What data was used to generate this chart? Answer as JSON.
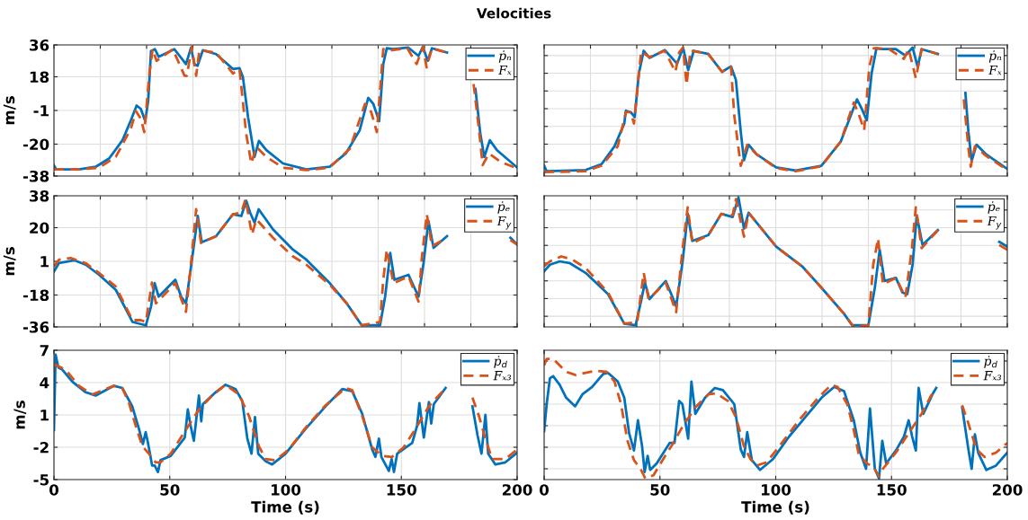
{
  "chart_data": [
    {
      "type": "line",
      "title": "Velocities",
      "ylabel": "m/s",
      "xlim": [
        0,
        200
      ],
      "ylim": [
        -38,
        36
      ],
      "xticks": [
        {
          "value": 0,
          "label": null
        },
        {
          "value": 20,
          "label": null
        },
        {
          "value": 40,
          "label": null
        },
        {
          "value": 60,
          "label": null
        },
        {
          "value": 80,
          "label": null
        },
        {
          "value": 100,
          "label": null
        },
        {
          "value": 120,
          "label": null
        },
        {
          "value": 140,
          "label": null
        },
        {
          "value": 160,
          "label": null
        },
        {
          "value": 180,
          "label": null
        },
        {
          "value": 200,
          "label": null
        }
      ],
      "yticks": [
        -38,
        -20,
        -1,
        18,
        36
      ],
      "tick_labels": "y",
      "grid": true,
      "legend": "top right",
      "series": [
        {
          "name": "ṗₙ",
          "color": "#0072bd",
          "line_style": "solid",
          "x": [
            0,
            1,
            10.8,
            18,
            23.8,
            29.6,
            33.2,
            35.7,
            37.5,
            39.4,
            40.7,
            41.9,
            43.6,
            45.2,
            52,
            57,
            59.2,
            60.6,
            62,
            64.3,
            70,
            77.3,
            80.1,
            81.6,
            83.8,
            86.6,
            88.5,
            91.7,
            98.9,
            109,
            119,
            126,
            132,
            135.7,
            137.9,
            140.4,
            142.2,
            143.7,
            146.6,
            153,
            157.4,
            159.3,
            161.4,
            163.2,
            169.7,
            175,
            182,
            184.1,
            185.8,
            188.2,
            191.3,
            200
          ],
          "values": [
            -32,
            -34.3,
            -34.3,
            -32.8,
            -28.1,
            -17.8,
            -6.6,
            1.8,
            -0.1,
            -7,
            4.6,
            32.6,
            33.6,
            29.3,
            33.6,
            25.2,
            34.5,
            25.2,
            24.2,
            33,
            30.8,
            22.4,
            22.9,
            17.7,
            -4.7,
            -27.2,
            -18.2,
            -23.4,
            -30.9,
            -34.3,
            -32.8,
            -25.3,
            -12.2,
            6.1,
            2.7,
            -7,
            25.2,
            34.1,
            33.6,
            34.5,
            29.8,
            34.9,
            27,
            34.1,
            31.7,
            null,
            11.1,
            -14.1,
            -27.2,
            -17.8,
            -23.4,
            -33.2
          ]
        },
        {
          "name": "Fₓ",
          "color": "#d95319",
          "line_style": "dashed",
          "x": [
            0,
            10.8,
            19.5,
            26.7,
            33.2,
            35.4,
            37.5,
            39,
            41.2,
            42.6,
            44.3,
            51.3,
            56.4,
            57.4,
            59.5,
            61.4,
            62.8,
            70,
            77.3,
            80.1,
            83,
            85.2,
            87.4,
            91.7,
            98.9,
            109,
            119,
            127.8,
            134.3,
            137,
            139.4,
            142.2,
            145.8,
            152.6,
            156.6,
            159.3,
            160.9,
            163.2,
            169.7,
            175,
            181.2,
            183.4,
            185.1,
            187.8,
            192.8,
            200
          ],
          "values": [
            -34.3,
            -34.3,
            -33.3,
            -27.2,
            -11.3,
            -1.4,
            -5.7,
            -13.2,
            19.6,
            33.6,
            27,
            33.6,
            18.6,
            18.6,
            34.9,
            18.6,
            33,
            31.7,
            19.9,
            22.4,
            -14.1,
            -30.9,
            -21.6,
            -27.2,
            -33.3,
            -34.7,
            -33.2,
            -22.5,
            2.7,
            -1.9,
            -13.2,
            33.6,
            33,
            34.1,
            25.2,
            34.9,
            23.3,
            34.1,
            31.7,
            null,
            13.9,
            -10.4,
            -31.9,
            -25.3,
            -30,
            -33.7
          ]
        }
      ]
    },
    {
      "type": "line",
      "xlim": [
        0,
        200
      ],
      "ylim": [
        -38,
        36
      ],
      "xticks": [
        {
          "value": 0,
          "label": null
        },
        {
          "value": 20,
          "label": null
        },
        {
          "value": 40,
          "label": null
        },
        {
          "value": 60,
          "label": null
        },
        {
          "value": 80,
          "label": null
        },
        {
          "value": 100,
          "label": null
        },
        {
          "value": 120,
          "label": null
        },
        {
          "value": 140,
          "label": null
        },
        {
          "value": 160,
          "label": null
        },
        {
          "value": 180,
          "label": null
        },
        {
          "value": 200,
          "label": null
        }
      ],
      "yticks": [
        {
          "value": -30,
          "label": null
        },
        {
          "value": -20,
          "label": null
        },
        {
          "value": -10,
          "label": null
        },
        {
          "value": 0,
          "label": null
        },
        {
          "value": 10,
          "label": null
        },
        {
          "value": 20,
          "label": null
        },
        {
          "value": 30,
          "label": null
        }
      ],
      "tick_labels": false,
      "grid": true,
      "legend": "top right",
      "series": [
        {
          "name": "ṗₙ",
          "color": "#0072bd",
          "line_style": "solid",
          "x": [
            0,
            1.1,
            17.9,
            24.8,
            30.4,
            34.6,
            35.3,
            37.4,
            39.1,
            40.9,
            43,
            45.5,
            52.1,
            57.4,
            60,
            62.2,
            64.6,
            70.9,
            76.8,
            80.7,
            82.8,
            84.9,
            86.3,
            88.3,
            91.8,
            100.2,
            108.6,
            119.7,
            128.1,
            135.1,
            137.2,
            139.3,
            141.4,
            143.5,
            145.6,
            151.9,
            156,
            159.1,
            161.3,
            163,
            170,
            176,
            181.9,
            183.2,
            184.6,
            186.7,
            190.9,
            200
          ],
          "values": [
            -32.2,
            -35.3,
            -34.6,
            -31.3,
            -21.2,
            -8.4,
            -1.1,
            -2,
            -4.8,
            19.9,
            32.7,
            28.7,
            33.1,
            25.4,
            34.5,
            21.7,
            32.7,
            30.9,
            20.8,
            23.9,
            16.3,
            -13,
            -29.1,
            -20.3,
            -25.8,
            -33.1,
            -34.9,
            -32.2,
            -18.5,
            5.3,
            -0.2,
            -6.6,
            19.9,
            34.2,
            33.6,
            33.6,
            30,
            34.5,
            23.6,
            33.6,
            30.9,
            null,
            8.9,
            -13,
            -29.4,
            -20.3,
            -25.8,
            -34
          ]
        },
        {
          "name": "Fₓ",
          "color": "#d95319",
          "line_style": "dashed",
          "x": [
            0,
            17.9,
            24.8,
            31.8,
            35.3,
            37.4,
            38.8,
            40.5,
            41.9,
            45.5,
            52.1,
            56.7,
            58.3,
            60,
            61.5,
            63.2,
            70.9,
            76.8,
            80.7,
            82.1,
            84.9,
            87.7,
            91.8,
            100.2,
            108.6,
            119.7,
            128.1,
            133.7,
            135.8,
            138.2,
            140.4,
            142.4,
            149,
            155.3,
            157.4,
            160.5,
            163,
            170,
            176,
            181.2,
            183.2,
            184.2,
            186,
            190.9,
            200
          ],
          "values": [
            -35.8,
            -35.3,
            -32.2,
            -21.2,
            -2,
            -2,
            -8.4,
            14.4,
            32.3,
            29.1,
            32.7,
            20.8,
            31.8,
            34.5,
            13.5,
            32.7,
            30.9,
            20.8,
            23.6,
            -3.9,
            -32.2,
            -20.3,
            -25.8,
            -33.5,
            -35.3,
            -32.5,
            -18.5,
            3.5,
            -2.9,
            -12.1,
            23.6,
            34.2,
            33.6,
            28.1,
            33.6,
            17.2,
            33.6,
            30.9,
            null,
            5.3,
            -22.1,
            -32.7,
            -21.2,
            -26.7,
            -34.6
          ]
        }
      ]
    },
    {
      "type": "line",
      "ylabel": "m/s",
      "xlim": [
        0,
        200
      ],
      "ylim": [
        -36,
        38
      ],
      "xticks": [
        {
          "value": 0,
          "label": null
        },
        {
          "value": 20,
          "label": null
        },
        {
          "value": 40,
          "label": null
        },
        {
          "value": 60,
          "label": null
        },
        {
          "value": 80,
          "label": null
        },
        {
          "value": 100,
          "label": null
        },
        {
          "value": 120,
          "label": null
        },
        {
          "value": 140,
          "label": null
        },
        {
          "value": 160,
          "label": null
        },
        {
          "value": 180,
          "label": null
        },
        {
          "value": 200,
          "label": null
        }
      ],
      "yticks": [
        -36,
        -18,
        1,
        20,
        38
      ],
      "tick_labels": "y",
      "grid": true,
      "legend": "top right",
      "series": [
        {
          "name": "ṗₑ",
          "color": "#0072bd",
          "line_style": "solid",
          "x": [
            0,
            2.2,
            8.7,
            13.7,
            19.5,
            26.7,
            33.9,
            39.7,
            41.9,
            43.5,
            45.2,
            52.4,
            54.9,
            57,
            59.2,
            62.1,
            63.8,
            70,
            77.3,
            80.9,
            83,
            84.7,
            86.6,
            88.4,
            94.6,
            103.2,
            109,
            119.1,
            126.4,
            132.9,
            140.8,
            143,
            145.2,
            147,
            153.1,
            157.4,
            159.6,
            161.7,
            163.9,
            169.7,
            180,
            197.1,
            200
          ],
          "values": [
            -4.7,
            0.1,
            1.6,
            -0.9,
            -6.6,
            -15.1,
            -33.2,
            -35.1,
            -24.6,
            -11.3,
            -18.9,
            -9.4,
            -18.9,
            -22.7,
            -1.8,
            26.6,
            11.8,
            15.2,
            27.6,
            26.6,
            35.2,
            28.5,
            22.8,
            30.4,
            19,
            7.6,
            1.9,
            -11.3,
            -22.7,
            -35.1,
            -35.1,
            -18.9,
            5.7,
            -9.4,
            -6.6,
            -18.9,
            0.1,
            23.8,
            8.6,
            15.2,
            null,
            14.3,
            10.5
          ]
        },
        {
          "name": "F$_{y}$",
          "color": "#d95319",
          "line_style": "dashed",
          "x": [
            0,
            2.2,
            7.2,
            13.7,
            19.5,
            26.7,
            33.9,
            37.5,
            39.7,
            42.3,
            44,
            52.4,
            57,
            59.2,
            61.4,
            63.5,
            70,
            77.3,
            80.9,
            82.7,
            85.5,
            87.4,
            94.6,
            103.2,
            109,
            119.1,
            126.4,
            132.9,
            140.8,
            142.2,
            143.7,
            146.6,
            153.1,
            157.4,
            158.9,
            161,
            163.2,
            169.7,
            180,
            197.1,
            200
          ],
          "values": [
            -1.8,
            1.9,
            2.9,
            0,
            -5.6,
            -13.2,
            -32.2,
            -32.2,
            -33.2,
            -11,
            -22.7,
            -11.3,
            -27.5,
            0.1,
            30.4,
            11.4,
            15.2,
            27.6,
            28.5,
            36.1,
            16.2,
            24.7,
            14.3,
            3.8,
            -0.9,
            -12.2,
            -22.7,
            -35.1,
            -33.2,
            -9.4,
            7.6,
            -11.3,
            -7.5,
            -21.7,
            3.8,
            27.6,
            9.5,
            14.3,
            null,
            13,
            10.5
          ]
        }
      ]
    },
    {
      "type": "line",
      "xlim": [
        0,
        200
      ],
      "ylim": [
        -36,
        38
      ],
      "xticks": [
        {
          "value": 0,
          "label": null
        },
        {
          "value": 20,
          "label": null
        },
        {
          "value": 40,
          "label": null
        },
        {
          "value": 60,
          "label": null
        },
        {
          "value": 80,
          "label": null
        },
        {
          "value": 100,
          "label": null
        },
        {
          "value": 120,
          "label": null
        },
        {
          "value": 140,
          "label": null
        },
        {
          "value": 160,
          "label": null
        },
        {
          "value": 180,
          "label": null
        },
        {
          "value": 200,
          "label": null
        }
      ],
      "yticks": [
        {
          "value": -30,
          "label": null
        },
        {
          "value": -20,
          "label": null
        },
        {
          "value": -10,
          "label": null
        },
        {
          "value": 0,
          "label": null
        },
        {
          "value": 10,
          "label": null
        },
        {
          "value": 20,
          "label": null
        },
        {
          "value": 30,
          "label": null
        }
      ],
      "tick_labels": false,
      "grid": true,
      "legend": "top right",
      "series": [
        {
          "name": "ṗₑ",
          "color": "#0072bd",
          "line_style": "solid",
          "x": [
            0,
            2.5,
            6.7,
            10.9,
            17.9,
            27.6,
            34.6,
            39.5,
            41.9,
            43.5,
            45.5,
            52.5,
            54.9,
            57,
            59.8,
            62,
            64,
            70.9,
            76.5,
            81.4,
            83.9,
            86.3,
            88.3,
            100.2,
            111.4,
            119.7,
            129.5,
            133,
            140,
            142.8,
            144.9,
            147,
            151.9,
            154.7,
            156.8,
            159.1,
            160.9,
            163.4,
            170,
            180,
            196.5,
            200
          ],
          "values": [
            -4.6,
            -0.9,
            1,
            0.1,
            -5.5,
            -17.5,
            -34.2,
            -35.1,
            -21.2,
            -11,
            -20.3,
            -10.1,
            -17.5,
            -24.5,
            1,
            27.8,
            12.5,
            15.8,
            27.8,
            26,
            37.1,
            19.5,
            28.4,
            9.3,
            -1.8,
            -13.8,
            -28.6,
            -35.1,
            -35.1,
            -13.8,
            7.5,
            -10.1,
            -8.3,
            -16.6,
            -17.5,
            -0.9,
            26.8,
            10.2,
            18.6,
            null,
            12,
            9.3
          ]
        },
        {
          "name": "F$_{y}$",
          "color": "#d95319",
          "line_style": "dashed",
          "x": [
            0,
            2.5,
            7.4,
            12.3,
            17.9,
            27.6,
            34.6,
            40.2,
            43,
            45.1,
            52.5,
            57,
            59.8,
            62,
            64,
            70.9,
            76.5,
            81.4,
            82.8,
            86.3,
            88.3,
            100.2,
            111.4,
            119.7,
            129.5,
            133.7,
            140,
            142.1,
            144.2,
            146.3,
            151.9,
            156,
            158.8,
            160.5,
            163,
            170,
            180,
            196.5,
            200
          ],
          "values": [
            -1.8,
            1,
            3.8,
            1.9,
            -2.7,
            -16.6,
            -34.2,
            -33.2,
            -5.5,
            -20.3,
            -11,
            -27.7,
            8.4,
            31.5,
            11.2,
            15.8,
            27.8,
            27.1,
            36.1,
            14.9,
            28.4,
            9.3,
            -1.8,
            -13.8,
            -28.6,
            -36,
            -35.1,
            -0.9,
            13.9,
            -12,
            -8.3,
            -19.3,
            8.4,
            31.5,
            8.4,
            18.6,
            null,
            10.2,
            7.5
          ]
        }
      ]
    },
    {
      "type": "line",
      "ylabel": "m/s",
      "xlabel": "Time (s)",
      "xlim": [
        0,
        200
      ],
      "ylim": [
        -5,
        7
      ],
      "xticks": [
        0,
        50,
        100,
        150,
        200
      ],
      "yticks": [
        -5,
        -2,
        1,
        4,
        7
      ],
      "grid": true,
      "legend": "top right",
      "series": [
        {
          "name": "ṗ$_{d}$",
          "color": "#0072bd",
          "line_style": "solid",
          "x": [
            0,
            0.7,
            1.9,
            3.6,
            7.9,
            13.7,
            18,
            25.9,
            29.5,
            33.8,
            36.7,
            38.4,
            39.6,
            40.6,
            42.4,
            43.5,
            44.9,
            46,
            50.4,
            54,
            56.5,
            57.8,
            59,
            60.4,
            62.6,
            63.6,
            64.3,
            69.8,
            74.1,
            78.4,
            81.3,
            83.5,
            85.3,
            86.8,
            88.2,
            91.4,
            94.2,
            100,
            108.6,
            117.3,
            124.5,
            128.8,
            133.1,
            137.4,
            138.8,
            140.3,
            141.4,
            144.6,
            145.8,
            146.8,
            148.2,
            154.7,
            156.8,
            157.8,
            159.7,
            161.9,
            162.9,
            164,
            169.1,
            175,
            180.7,
            182.9,
            184.6,
            186.3,
            187.5,
            190.6,
            194.9,
            200
          ],
          "values": [
            -0.4,
            6.6,
            5.4,
            5.2,
            4.1,
            3.1,
            2.8,
            3.7,
            3.5,
            1.8,
            -0.3,
            -1.7,
            -0.6,
            -1.6,
            -3.7,
            -3.7,
            -4.3,
            -3.2,
            -2.8,
            -1.8,
            -1.1,
            1.5,
            0,
            -1.4,
            2.8,
            0.4,
            2,
            3.1,
            3.8,
            3.4,
            2.3,
            -1.2,
            -2.6,
            0.8,
            -2.6,
            -3.3,
            -3.6,
            -2.6,
            -0.3,
            1.8,
            3.4,
            3.2,
            1.1,
            -2.2,
            -2.9,
            -1.2,
            -2.9,
            -4.2,
            -3.1,
            -4.3,
            -2.6,
            -1.6,
            0,
            2.1,
            -1.1,
            2.2,
            0.2,
            2,
            3.5,
            null,
            1.8,
            -0.9,
            -2.6,
            1,
            -2.6,
            -3.6,
            -3.4,
            -2.5
          ]
        },
        {
          "name": "Fₓ₃",
          "color": "#d95319",
          "line_style": "dashed",
          "x": [
            0,
            5,
            10.8,
            16.5,
            25.9,
            29.5,
            32.4,
            35.3,
            38.1,
            41,
            43.9,
            46,
            50.4,
            55.4,
            62.6,
            68.3,
            74.1,
            79.9,
            84.2,
            88.5,
            91.4,
            95.7,
            101.4,
            108.6,
            117.3,
            125.9,
            128.8,
            133.1,
            137.4,
            141.7,
            146,
            151,
            156.1,
            161.9,
            169.1,
            175,
            180.7,
            183.5,
            186.3,
            189.2,
            194.9,
            200
          ],
          "values": [
            5.7,
            5.2,
            3.7,
            2.9,
            3.7,
            3.5,
            2.1,
            0,
            -1.9,
            -2.6,
            -3.4,
            -3.4,
            -2.6,
            -0.9,
            1.5,
            2.8,
            3.8,
            2.9,
            0.9,
            -1.9,
            -3.1,
            -3.2,
            -2.2,
            -0.2,
            1.9,
            3.5,
            3.3,
            0.9,
            -2,
            -2.8,
            -2.9,
            -2,
            -0.3,
            1.8,
            3.5,
            null,
            2.6,
            0.9,
            -1.2,
            -3.1,
            -3.1,
            -2.2
          ]
        }
      ]
    },
    {
      "type": "line",
      "xlabel": "Time (s)",
      "xlim": [
        0,
        200
      ],
      "ylim": [
        -5,
        7
      ],
      "xticks": [
        0,
        50,
        100,
        150,
        200
      ],
      "yticks": [
        {
          "value": -4,
          "label": null
        },
        {
          "value": -2,
          "label": null
        },
        {
          "value": 0,
          "label": null
        },
        {
          "value": 2,
          "label": null
        },
        {
          "value": 4,
          "label": null
        },
        {
          "value": 6,
          "label": null
        }
      ],
      "tick_labels": "x",
      "grid": true,
      "legend": "top right",
      "series": [
        {
          "name": "ṗ$_{d}$",
          "color": "#0072bd",
          "line_style": "solid",
          "x": [
            0,
            1.1,
            2.5,
            3.9,
            6.7,
            9.5,
            13.4,
            16.5,
            20.7,
            25.5,
            27.6,
            31.8,
            34.6,
            36.7,
            38.8,
            40.5,
            42.3,
            43.4,
            44.7,
            45.8,
            48.6,
            54.2,
            56.3,
            58.3,
            59.7,
            62.2,
            63.6,
            65.3,
            69.5,
            73.7,
            77.2,
            82.1,
            84.9,
            86.3,
            87.7,
            89.7,
            93.2,
            98.8,
            105.8,
            112.8,
            119.8,
            125.3,
            129.5,
            133.7,
            136.5,
            139,
            140.7,
            142.8,
            144.6,
            146,
            147.7,
            151.9,
            155.4,
            157.4,
            158.9,
            160.5,
            161.7,
            163.7,
            167.9,
            169.3,
            175,
            180.5,
            183.2,
            184.6,
            186,
            187.4,
            190.9,
            195.1,
            200
          ],
          "values": [
            -0.5,
            2,
            4.4,
            4.6,
            3.8,
            2.6,
            1.8,
            2.9,
            3.6,
            4.8,
            4.9,
            4.1,
            2.6,
            -0.7,
            -2.3,
            0.5,
            -1.9,
            -4.3,
            -2.8,
            -4.1,
            -3.5,
            -1.6,
            -1.6,
            2.3,
            2,
            -1.2,
            4.1,
            1.1,
            2.6,
            3.5,
            3.3,
            2,
            -2.2,
            -2.9,
            -0.6,
            -3.2,
            -4.1,
            -3.1,
            -1,
            0.8,
            2.6,
            3.6,
            3.2,
            0.5,
            -2.5,
            -4,
            1.6,
            -4,
            -4.9,
            -1.4,
            -3.5,
            -2.3,
            -1,
            0.5,
            -1,
            -2.3,
            3.5,
            1.1,
            3,
            3.5,
            null,
            1.7,
            -2.2,
            -4,
            -0.8,
            -2.5,
            -4.1,
            -3.7,
            -2.5
          ]
        },
        {
          "name": "Fₓ₃",
          "color": "#d95319",
          "line_style": "dashed",
          "x": [
            0,
            1.1,
            3.9,
            9.5,
            13.7,
            22,
            26.9,
            30.4,
            33.2,
            36,
            38.8,
            41.6,
            43.7,
            47.2,
            51.4,
            55.5,
            59.7,
            65.3,
            70.9,
            74.4,
            79.3,
            82.8,
            86.3,
            89.1,
            91.8,
            96,
            101.6,
            110,
            118.4,
            124,
            126.7,
            130.9,
            133.7,
            135.8,
            139.3,
            142.1,
            144.6,
            146.3,
            151.9,
            157.4,
            163,
            167.1,
            169.3,
            175,
            180.5,
            183.2,
            186.7,
            190.2,
            195.1,
            200
          ],
          "values": [
            5.6,
            6.2,
            6.2,
            5,
            4.7,
            5.1,
            5,
            4.1,
            2,
            -1.4,
            -3.2,
            -4,
            -4.9,
            -4.6,
            -3.1,
            -1.7,
            -0.1,
            1.7,
            2.9,
            3,
            2.3,
            0.8,
            -1.9,
            -3.1,
            -3.7,
            -3.4,
            -1.9,
            0.5,
            2.6,
            3.8,
            3.6,
            2,
            -0.4,
            -2.6,
            -3.5,
            -3.8,
            -4.7,
            -4,
            -2.5,
            -0.7,
            1.1,
            2.8,
            3.3,
            null,
            1.9,
            0.2,
            -2.2,
            -2.9,
            -2.5,
            -1.6
          ]
        }
      ]
    }
  ]
}
